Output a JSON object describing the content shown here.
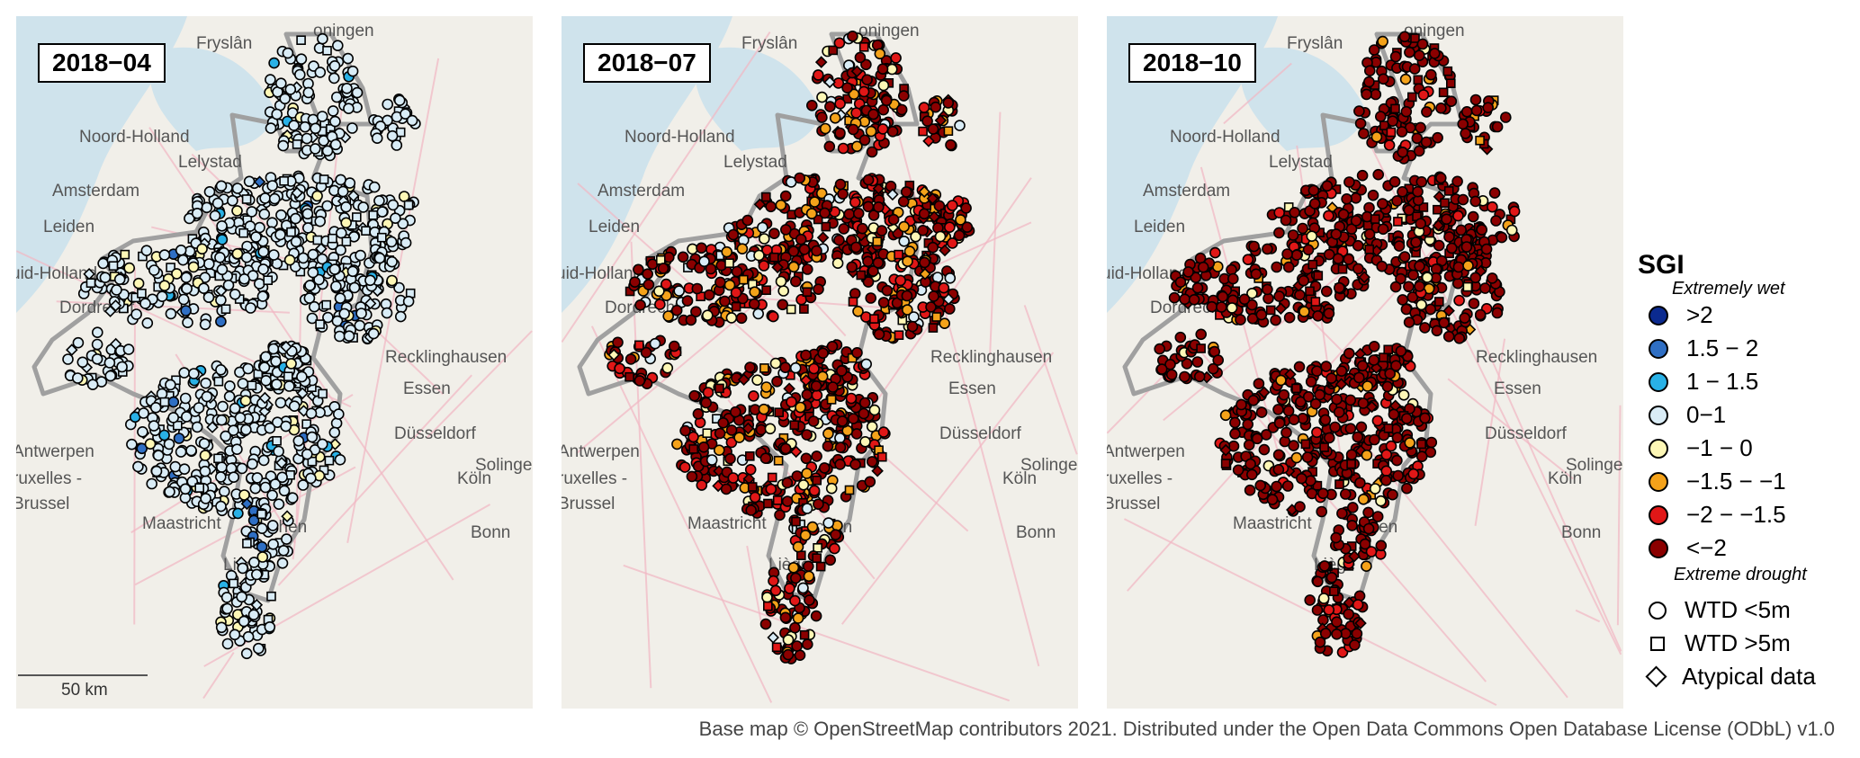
{
  "panels": [
    {
      "date": "2018−04",
      "scheme": "wet"
    },
    {
      "date": "2018−07",
      "scheme": "mid"
    },
    {
      "date": "2018−10",
      "scheme": "dry"
    }
  ],
  "place_labels": {
    "groningen": "oningen",
    "fryslan": "Fryslân",
    "noord_holland": "Noord-Holland",
    "lelystad": "Lelystad",
    "amsterdam": "Amsterdam",
    "leiden": "Leiden",
    "zuid_holland": "uid-Holland",
    "dordrecht": "Dordrecht",
    "recklinghausen": "Recklinghausen",
    "essen": "Essen",
    "dusseldorf": "Düsseldorf",
    "antwerpen": "Antwerpen",
    "bruxelles": "ruxelles -",
    "brussel": "Brussel",
    "solingen": "Solingen",
    "koln": "Köln",
    "maastricht": "Maastricht",
    "aachen": "chen",
    "bonn": "Bonn",
    "liege": "Liège"
  },
  "scale_bar": {
    "label": "50 km"
  },
  "legend": {
    "title": "SGI",
    "top_note": "Extremely wet",
    "bottom_note": "Extreme drought",
    "classes": [
      {
        "label": ">2",
        "color": "#0b2a8f"
      },
      {
        "label": "1.5 − 2",
        "color": "#2f6fc4"
      },
      {
        "label": "1 − 1.5",
        "color": "#29b1e6"
      },
      {
        "label": "0−1",
        "color": "#d9ecf6"
      },
      {
        "label": "−1 − 0",
        "color": "#fdf7b6"
      },
      {
        "label": "−1.5 − −1",
        "color": "#f4a21a"
      },
      {
        "label": "−2 − −1.5",
        "color": "#e01717"
      },
      {
        "label": "<−2",
        "color": "#8b0000"
      }
    ],
    "shapes": [
      {
        "label": "WTD <5m",
        "shape": "circle"
      },
      {
        "label": "WTD >5m",
        "shape": "square"
      },
      {
        "label": "Atypical data",
        "shape": "diamond"
      }
    ]
  },
  "attribution": "Base map © OpenStreetMap contributors 2021. Distributed under the Open Data Commons Open Database License (ODbL) v1.0",
  "colors": {
    "water": "#cfe3ec",
    "land": "#f1efe9",
    "boundary": "#a0a0a0",
    "road": "#f2b7c4"
  }
}
